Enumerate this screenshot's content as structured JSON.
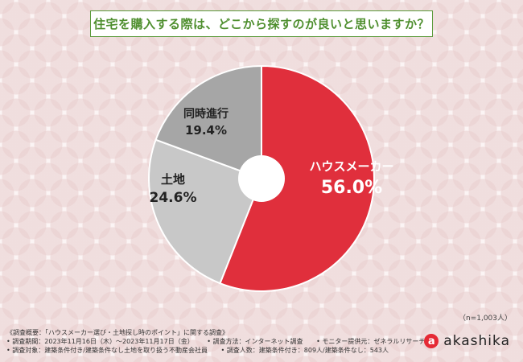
{
  "title": "住宅を購入する際は、どこから探すのが良いと思いますか？",
  "chart_data": {
    "type": "pie",
    "donut": true,
    "slices": [
      {
        "label": "ハウスメーカー",
        "value": 56.0,
        "display": "56.0%",
        "color": "#e02f3c",
        "text_color": "#ffffff"
      },
      {
        "label": "土地",
        "value": 24.6,
        "display": "24.6%",
        "color": "#c8c8c8",
        "text_color": "#222222"
      },
      {
        "label": "同時進行",
        "value": 19.4,
        "display": "19.4%",
        "color": "#a6a6a6",
        "text_color": "#222222"
      }
    ]
  },
  "sample_size": "（n=1,003人）",
  "footer": {
    "line1": "《調査概要：「ハウスメーカー選び・土地探し時のポイント」に関する調査》",
    "line2a": "• 調査期間：2023年11月16日（木）〜2023年11月17日（金）",
    "line2b": "• 調査方法：インターネット調査",
    "line2c": "• モニター提供元：ゼネラルリサーチ",
    "line3a": "• 調査対象：建築条件付き/建築条件なし土地を取り扱う不動産会社員",
    "line3b": "• 調査人数：建築条件付き：809人/建築条件なし：543人"
  },
  "logo": {
    "mark": "a",
    "text": "akashika"
  }
}
